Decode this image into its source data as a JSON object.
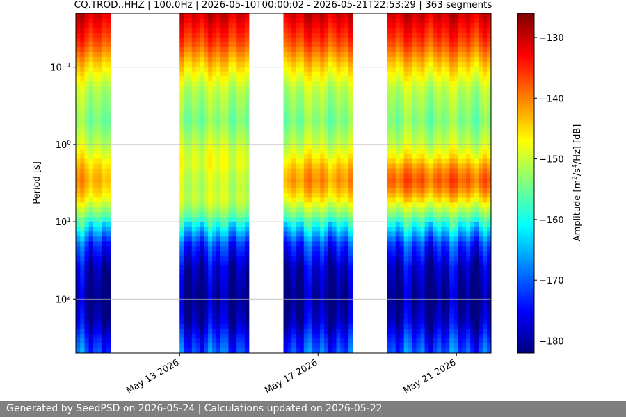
{
  "chart_data": {
    "type": "heatmap",
    "title": "CQ.TROD..HHZ | 100.0Hz | 2026-05-10T00:00:02 - 2026-05-21T22:53:29 | 363 segments",
    "xlabel": "",
    "ylabel": "Period [s]",
    "x_axis": {
      "type": "date",
      "range": [
        "2026-05-10",
        "2026-05-22"
      ],
      "tick_labels": [
        "May 13 2026",
        "May 17 2026",
        "May 21 2026"
      ],
      "tick_dates": [
        "2026-05-13",
        "2026-05-17",
        "2026-05-21"
      ]
    },
    "y_axis": {
      "scale": "log",
      "inverted": true,
      "range": [
        0.02,
        500
      ],
      "ticks": [
        0.1,
        1,
        10,
        100
      ],
      "tick_labels": [
        "10^-1",
        "10^0",
        "10^1",
        "10^2"
      ],
      "grid": true
    },
    "colorbar": {
      "label": "Amplitude [m^2/s^4/Hz] [dB]",
      "colormap": "jet",
      "range": [
        -182,
        -126
      ],
      "ticks": [
        -130,
        -140,
        -150,
        -160,
        -170,
        -180
      ]
    },
    "data_blocks": [
      {
        "start": "2026-05-10",
        "end": "2026-05-11",
        "low_period_peak_db": -142
      },
      {
        "start": "2026-05-13",
        "end": "2026-05-15",
        "low_period_peak_db": -150
      },
      {
        "start": "2026-05-16",
        "end": "2026-05-18",
        "low_period_peak_db": -141
      },
      {
        "start": "2026-05-19",
        "end": "2026-05-22",
        "low_period_peak_db": -138
      }
    ],
    "profile": {
      "periods": [
        0.02,
        0.05,
        0.1,
        0.2,
        0.5,
        1,
        2,
        3,
        5,
        8,
        12,
        20,
        40,
        100,
        200,
        300,
        500
      ],
      "amplitude_db": [
        -130,
        -137,
        -145,
        -151,
        -154,
        -150,
        -145,
        -144,
        -147,
        -154,
        -162,
        -172,
        -178,
        -181,
        -178,
        -174,
        -170
      ]
    },
    "gaps": [
      {
        "start": "2026-05-11",
        "end": "2026-05-13"
      },
      {
        "start": "2026-05-15",
        "end": "2026-05-16"
      },
      {
        "start": "2026-05-18",
        "end": "2026-05-19"
      }
    ]
  },
  "footer_text": "Generated by SeedPSD on 2026-05-24 | Calculations updated on 2026-05-22"
}
